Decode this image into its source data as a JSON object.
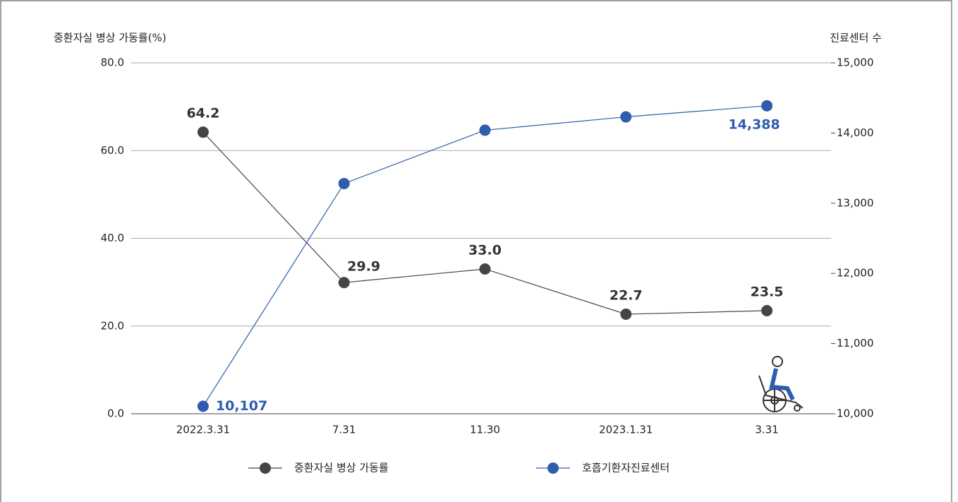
{
  "chart_data": {
    "type": "line",
    "ylabel": "중환자실 병상 가동률(%)",
    "y2label": "진료센터 수",
    "categories": [
      "2022.3.31",
      "7.31",
      "11.30",
      "2023.1.31",
      "3.31"
    ],
    "series": [
      {
        "name": "중환자실 병상 가동률",
        "color": "#454545",
        "values": [
          64.2,
          29.9,
          33.0,
          22.7,
          23.5
        ],
        "value_labels": [
          "64.2",
          "29.9",
          "33.0",
          "22.7",
          "23.5"
        ]
      },
      {
        "name": "호흡기환자진료센터",
        "color": "#2f5cad",
        "axis": "y2",
        "values": [
          10107,
          13280,
          14040,
          14230,
          14388
        ],
        "value_labels": [
          "10,107",
          null,
          null,
          null,
          "14,388"
        ]
      }
    ],
    "ylim": [
      0,
      80
    ],
    "yticks": [
      {
        "value": 0,
        "label": "0.0"
      },
      {
        "value": 20,
        "label": "20.0"
      },
      {
        "value": 40,
        "label": "40.0"
      },
      {
        "value": 60,
        "label": "60.0"
      },
      {
        "value": 80,
        "label": "80.0"
      }
    ],
    "y2lim": [
      10000,
      15000
    ],
    "y2ticks": [
      {
        "value": 10000,
        "label": "10,000"
      },
      {
        "value": 11000,
        "label": "11,000"
      },
      {
        "value": 12000,
        "label": "12,000"
      },
      {
        "value": 13000,
        "label": "13,000"
      },
      {
        "value": 14000,
        "label": "14,000"
      },
      {
        "value": 15000,
        "label": "15,000"
      }
    ],
    "grid": true,
    "legend": "bottom"
  }
}
